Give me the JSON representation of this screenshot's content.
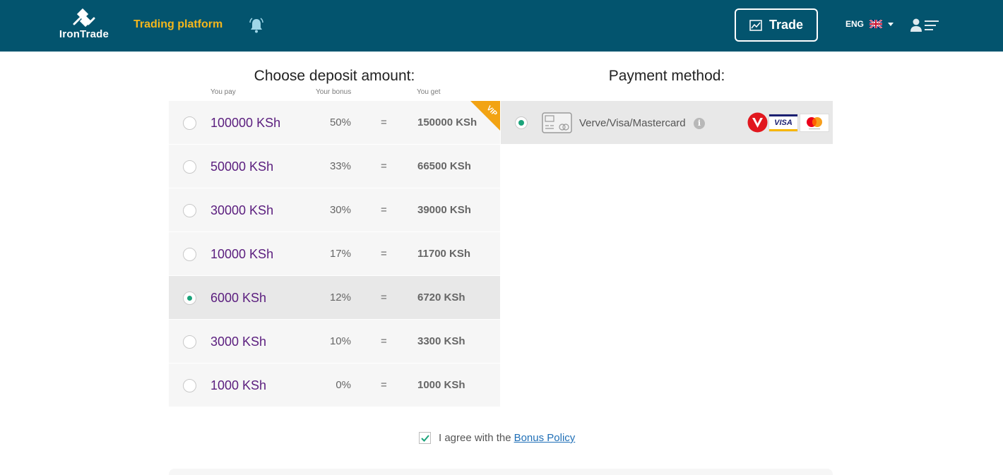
{
  "header": {
    "logo_text": "IronTrade",
    "nav_link": "Trading platform",
    "trade_button": "Trade",
    "language": "ENG"
  },
  "deposit": {
    "title": "Choose deposit amount:",
    "columns": {
      "pay": "You pay",
      "bonus": "Your bonus",
      "get": "You get"
    },
    "vip_badge": "VIP",
    "rows": [
      {
        "pay": "100000 KSh",
        "bonus": "50%",
        "eq": "=",
        "get": "150000 KSh",
        "selected": false,
        "vip": true
      },
      {
        "pay": "50000 KSh",
        "bonus": "33%",
        "eq": "=",
        "get": "66500 KSh",
        "selected": false
      },
      {
        "pay": "30000 KSh",
        "bonus": "30%",
        "eq": "=",
        "get": "39000 KSh",
        "selected": false
      },
      {
        "pay": "10000 KSh",
        "bonus": "17%",
        "eq": "=",
        "get": "11700 KSh",
        "selected": false
      },
      {
        "pay": "6000 KSh",
        "bonus": "12%",
        "eq": "=",
        "get": "6720 KSh",
        "selected": true
      },
      {
        "pay": "3000 KSh",
        "bonus": "10%",
        "eq": "=",
        "get": "3300 KSh",
        "selected": false
      },
      {
        "pay": "1000 KSh",
        "bonus": "0%",
        "eq": "=",
        "get": "1000 KSh",
        "selected": false
      }
    ]
  },
  "payment": {
    "title": "Payment method:",
    "method_label": "Verve/Visa/Mastercard",
    "info_glyph": "i",
    "visa_text": "VISA"
  },
  "agreement": {
    "text": "I agree with the",
    "link": "Bonus Policy",
    "checked": true
  },
  "colors": {
    "header_bg": "#03546e",
    "nav_accent": "#f5b71c",
    "amount_text": "#5a1d7e",
    "radio_selected": "#1aa37a",
    "vip_badge": "#f2a313",
    "link": "#1f6fb7"
  }
}
